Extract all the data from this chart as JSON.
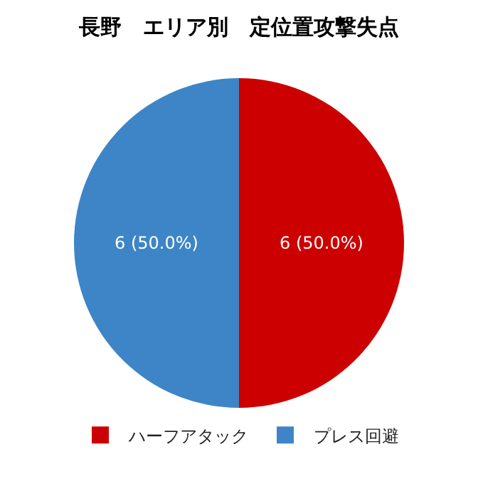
{
  "chart_data": {
    "type": "pie",
    "title": "長野　エリア別　定位置攻撃失点",
    "categories": [
      "ハーフアタック",
      "プレス回避"
    ],
    "values": [
      6,
      6
    ],
    "colors": [
      "#cc0000",
      "#3d85c6"
    ],
    "value_labels": [
      "6 (50.0%)",
      "6 (50.0%)"
    ],
    "legend": "bottom"
  }
}
